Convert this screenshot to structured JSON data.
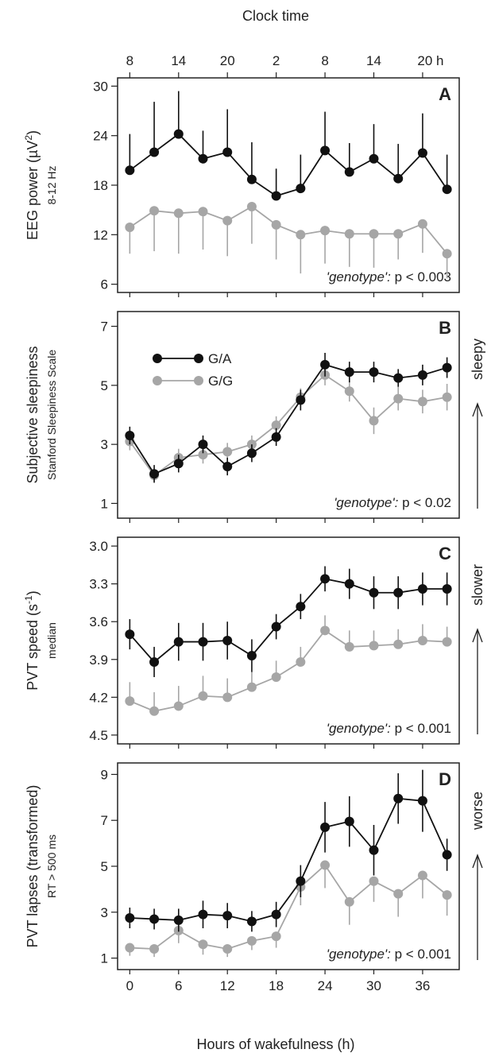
{
  "figure": {
    "top_axis_title": "Clock time",
    "bottom_axis_title": "Hours of wakefulness (h)",
    "top_tick_labels": [
      "8",
      "14",
      "20",
      "2",
      "8",
      "14",
      "20 h"
    ],
    "top_tick_hours": [
      0,
      6,
      12,
      18,
      24,
      30,
      36
    ],
    "legend": [
      {
        "label": "G/A",
        "color": "#111111"
      },
      {
        "label": "G/G",
        "color": "#a6a6a6"
      }
    ],
    "colors": {
      "GA": "#111111",
      "GG": "#a6a6a6"
    }
  },
  "chart_data": [
    {
      "type": "line",
      "panel": "A",
      "ylabel": "EEG power (µV²)",
      "ylabel_main": "EEG power (µV",
      "ylabel_sup": "2",
      "ylabel_close": ")",
      "ylabel_sub": "8-12 Hz",
      "annotation_italic": "'genotype':",
      "annotation_rest": " p < 0.003",
      "x": [
        0,
        3,
        6,
        9,
        12,
        15,
        18,
        21,
        24,
        27,
        30,
        33,
        36,
        39
      ],
      "xlim": [
        -1.5,
        40.5
      ],
      "xticks": [
        0,
        6,
        12,
        18,
        24,
        30,
        36
      ],
      "ylim": [
        5,
        31
      ],
      "yticks": [
        6,
        12,
        18,
        24,
        30
      ],
      "ytick_labels": [
        "6",
        "12",
        "18",
        "24",
        "30"
      ],
      "y_reversed": false,
      "arrow_label": "",
      "series": [
        {
          "name": "G/A",
          "color": "#111111",
          "values": [
            19.8,
            22.0,
            24.2,
            21.2,
            22.0,
            18.7,
            16.7,
            17.6,
            22.2,
            19.6,
            21.2,
            18.8,
            21.9,
            17.5
          ],
          "errors": [
            4.4,
            6.1,
            5.2,
            3.4,
            5.2,
            4.5,
            3.3,
            4.1,
            4.7,
            3.5,
            4.2,
            4.2,
            4.8,
            4.2
          ],
          "error_dir": "up"
        },
        {
          "name": "G/G",
          "color": "#a6a6a6",
          "values": [
            12.9,
            14.9,
            14.6,
            14.8,
            13.7,
            15.4,
            13.2,
            12.0,
            12.5,
            12.1,
            12.1,
            12.1,
            13.3,
            9.7
          ],
          "errors": [
            3.2,
            4.9,
            4.9,
            4.6,
            4.3,
            4.5,
            4.2,
            4.7,
            4.0,
            4.0,
            4.1,
            3.1,
            3.5,
            3.0
          ],
          "error_dir": "down"
        }
      ]
    },
    {
      "type": "line",
      "panel": "B",
      "ylabel": "Subjective sleepiness",
      "ylabel_main": "Subjective sleepiness",
      "ylabel_sup": "",
      "ylabel_close": "",
      "ylabel_sub": "Stanford Sleepiness Scale",
      "annotation_italic": "'genotype':",
      "annotation_rest": " p < 0.02",
      "x": [
        0,
        3,
        6,
        9,
        12,
        15,
        18,
        21,
        24,
        27,
        30,
        33,
        36,
        39
      ],
      "xlim": [
        -1.5,
        40.5
      ],
      "xticks": [
        0,
        6,
        12,
        18,
        24,
        30,
        36
      ],
      "ylim": [
        0.5,
        7.5
      ],
      "yticks": [
        1,
        3,
        5,
        7
      ],
      "ytick_labels": [
        "1",
        "3",
        "5",
        "7"
      ],
      "y_reversed": false,
      "arrow_label": "sleepy",
      "legend_in_panel": true,
      "series": [
        {
          "name": "G/A",
          "color": "#111111",
          "values": [
            3.3,
            2.0,
            2.35,
            3.0,
            2.25,
            2.7,
            3.25,
            4.5,
            5.7,
            5.45,
            5.45,
            5.25,
            5.35,
            5.6
          ],
          "errors": [
            0.3,
            0.3,
            0.3,
            0.3,
            0.3,
            0.3,
            0.3,
            0.35,
            0.4,
            0.35,
            0.35,
            0.3,
            0.35,
            0.35
          ],
          "error_dir": "both"
        },
        {
          "name": "G/G",
          "color": "#a6a6a6",
          "values": [
            3.1,
            1.95,
            2.55,
            2.65,
            2.75,
            3.0,
            3.65,
            4.6,
            5.35,
            4.8,
            3.8,
            4.55,
            4.45,
            4.6
          ],
          "errors": [
            0.3,
            0.2,
            0.3,
            0.3,
            0.3,
            0.3,
            0.3,
            0.3,
            0.35,
            0.35,
            0.45,
            0.4,
            0.4,
            0.45
          ],
          "error_dir": "both"
        }
      ]
    },
    {
      "type": "line",
      "panel": "C",
      "ylabel": "PVT speed (s⁻¹)",
      "ylabel_main": "PVT speed (s",
      "ylabel_sup": "-1",
      "ylabel_close": ")",
      "ylabel_sub": "median",
      "annotation_italic": "'genotype':",
      "annotation_rest": " p < 0.001",
      "x": [
        0,
        3,
        6,
        9,
        12,
        15,
        18,
        21,
        24,
        27,
        30,
        33,
        36,
        39
      ],
      "xlim": [
        -1.5,
        40.5
      ],
      "xticks": [
        0,
        6,
        12,
        18,
        24,
        30,
        36
      ],
      "ylim": [
        2.93,
        4.57
      ],
      "yticks": [
        3.0,
        3.3,
        3.6,
        3.9,
        4.2,
        4.5
      ],
      "ytick_labels": [
        "3.0",
        "3.3",
        "3.6",
        "3.9",
        "4.2",
        "4.5"
      ],
      "y_reversed": true,
      "arrow_label": "slower",
      "series": [
        {
          "name": "G/A",
          "color": "#111111",
          "values": [
            3.7,
            3.92,
            3.76,
            3.76,
            3.75,
            3.87,
            3.64,
            3.48,
            3.26,
            3.3,
            3.37,
            3.37,
            3.34,
            3.34
          ],
          "errors": [
            0.12,
            0.12,
            0.15,
            0.15,
            0.15,
            0.13,
            0.1,
            0.1,
            0.1,
            0.12,
            0.13,
            0.13,
            0.13,
            0.13
          ],
          "error_dir": "both"
        },
        {
          "name": "G/G",
          "color": "#a6a6a6",
          "values": [
            4.23,
            4.31,
            4.27,
            4.19,
            4.2,
            4.12,
            4.04,
            3.92,
            3.67,
            3.8,
            3.79,
            3.78,
            3.75,
            3.76
          ],
          "errors": [
            0.15,
            0.15,
            0.16,
            0.16,
            0.15,
            0.12,
            0.13,
            0.12,
            0.12,
            0.13,
            0.12,
            0.12,
            0.13,
            0.12
          ],
          "error_dir": "down"
        }
      ]
    },
    {
      "type": "line",
      "panel": "D",
      "ylabel": "PVT lapses (transformed)",
      "ylabel_main": "PVT lapses (transformed)",
      "ylabel_sup": "",
      "ylabel_close": "",
      "ylabel_sub": "RT > 500 ms",
      "annotation_italic": "'genotype':",
      "annotation_rest": " p < 0.001",
      "x": [
        0,
        3,
        6,
        9,
        12,
        15,
        18,
        21,
        24,
        27,
        30,
        33,
        36,
        39
      ],
      "xlim": [
        -1.5,
        40.5
      ],
      "xticks": [
        0,
        6,
        12,
        18,
        24,
        30,
        36
      ],
      "xtick_labels": [
        "0",
        "6",
        "12",
        "18",
        "24",
        "30",
        "36"
      ],
      "ylim": [
        0.5,
        9.5
      ],
      "yticks": [
        1,
        3,
        5,
        7,
        9
      ],
      "ytick_labels": [
        "1",
        "3",
        "5",
        "7",
        "9"
      ],
      "y_reversed": false,
      "arrow_label": "worse",
      "series": [
        {
          "name": "G/A",
          "color": "#111111",
          "values": [
            2.75,
            2.7,
            2.65,
            2.9,
            2.85,
            2.6,
            2.9,
            4.35,
            6.7,
            6.95,
            5.7,
            7.95,
            7.85,
            5.5
          ],
          "errors": [
            0.45,
            0.45,
            0.5,
            0.6,
            0.55,
            0.45,
            0.55,
            0.7,
            1.1,
            1.1,
            1.1,
            1.1,
            1.35,
            0.7
          ],
          "error_dir": "both"
        },
        {
          "name": "G/G",
          "color": "#a6a6a6",
          "values": [
            1.45,
            1.4,
            2.2,
            1.6,
            1.4,
            1.75,
            1.95,
            4.1,
            5.05,
            3.45,
            4.35,
            3.8,
            4.6,
            3.75
          ],
          "errors": [
            0.35,
            0.35,
            0.55,
            0.45,
            0.35,
            0.4,
            0.5,
            0.8,
            1.0,
            1.0,
            0.9,
            1.0,
            1.0,
            0.9
          ],
          "error_dir": "down"
        }
      ]
    }
  ]
}
